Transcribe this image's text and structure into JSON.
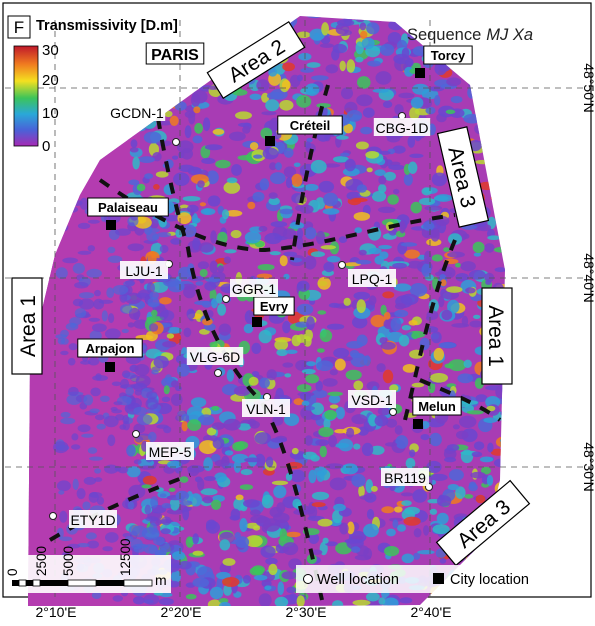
{
  "panel_letter": "F",
  "colorbar": {
    "title": "Transmissivity [D.m]",
    "ticks": [
      "30",
      "20",
      "10",
      "0"
    ]
  },
  "sequence": {
    "prefix": "Sequence",
    "name": "MJ Xa"
  },
  "cities": [
    {
      "name": "PARIS"
    },
    {
      "name": "Torcy"
    },
    {
      "name": "Créteil"
    },
    {
      "name": "Palaiseau"
    },
    {
      "name": "Evry"
    },
    {
      "name": "Arpajon"
    },
    {
      "name": "Melun"
    }
  ],
  "wells": [
    {
      "name": "GCDN-1"
    },
    {
      "name": "CBG-1D"
    },
    {
      "name": "LJU-1"
    },
    {
      "name": "GGR-1"
    },
    {
      "name": "LPQ-1"
    },
    {
      "name": "VLG-6D"
    },
    {
      "name": "VLN-1"
    },
    {
      "name": "VSD-1"
    },
    {
      "name": "MEP-5"
    },
    {
      "name": "BR119"
    },
    {
      "name": "ETY1D"
    }
  ],
  "areas": {
    "area2": "Area 2",
    "area3_top": "Area 3",
    "area1_right": "Area 1",
    "area1_left": "Area 1",
    "area3_bottom": "Area 3"
  },
  "longitude_labels": [
    "2°10'E",
    "2°20'E",
    "2°30'E",
    "2°40'E"
  ],
  "latitude_labels": [
    "48°50'N",
    "48°40'N",
    "48°30'N"
  ],
  "scalebar": {
    "ticks": [
      "0",
      "2500",
      "5000",
      "12500"
    ],
    "unit": "m"
  },
  "legend": {
    "well": "Well location",
    "city": "City location"
  },
  "colors": {
    "background_area": "#a83cb4",
    "low": "#7a3fc6",
    "mid": "#2f9ed8",
    "high": "#e23a2a"
  }
}
